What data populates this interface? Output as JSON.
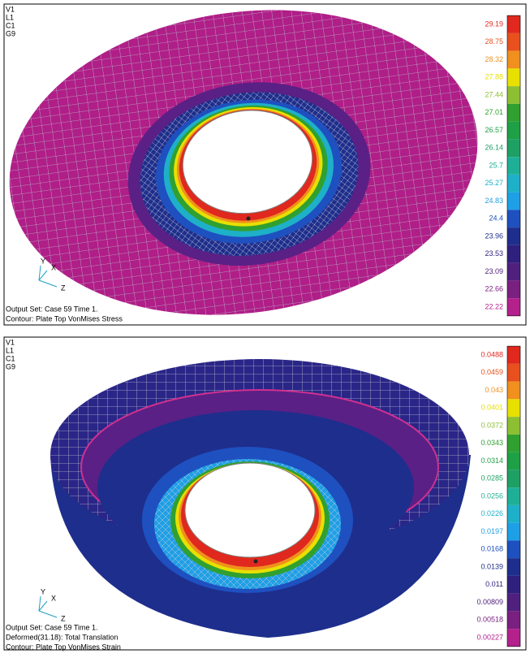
{
  "panels": [
    {
      "header": [
        "V1",
        "L1",
        "C1",
        "G9"
      ],
      "legend": [
        {
          "label": "29.19",
          "color": "#e0281e"
        },
        {
          "label": "28.75",
          "color": "#e8501e"
        },
        {
          "label": "28.32",
          "color": "#f0901e"
        },
        {
          "label": "27.88",
          "color": "#e8e000"
        },
        {
          "label": "27.44",
          "color": "#8cc032"
        },
        {
          "label": "27.01",
          "color": "#30a030"
        },
        {
          "label": "26.57",
          "color": "#1ea046"
        },
        {
          "label": "26.14",
          "color": "#1ea064"
        },
        {
          "label": "25.7",
          "color": "#1eb096"
        },
        {
          "label": "25.27",
          "color": "#1eb0c8"
        },
        {
          "label": "24.83",
          "color": "#1ea0e6"
        },
        {
          "label": "24.4",
          "color": "#1e50c0"
        },
        {
          "label": "23.96",
          "color": "#1e2e8c"
        },
        {
          "label": "23.53",
          "color": "#30207e"
        },
        {
          "label": "23.09",
          "color": "#50207e"
        },
        {
          "label": "22.66",
          "color": "#7a2080"
        },
        {
          "label": "22.22",
          "color": "#b4208c"
        }
      ],
      "axes": [
        "Y",
        "X",
        "Z"
      ],
      "footer": [
        "Output Set: Case 59 Time 1.",
        "Contour: Plate Top VonMises Stress"
      ]
    },
    {
      "header": [
        "V1",
        "L1",
        "C1",
        "G9"
      ],
      "legend": [
        {
          "label": "0.0488",
          "color": "#e0281e"
        },
        {
          "label": "0.0459",
          "color": "#e8501e"
        },
        {
          "label": "0.043",
          "color": "#f0901e"
        },
        {
          "label": "0.0401",
          "color": "#e8e000"
        },
        {
          "label": "0.0372",
          "color": "#8cc032"
        },
        {
          "label": "0.0343",
          "color": "#30a030"
        },
        {
          "label": "0.0314",
          "color": "#1ea046"
        },
        {
          "label": "0.0285",
          "color": "#1ea064"
        },
        {
          "label": "0.0256",
          "color": "#1eb096"
        },
        {
          "label": "0.0226",
          "color": "#1eb0c8"
        },
        {
          "label": "0.0197",
          "color": "#1ea0e6"
        },
        {
          "label": "0.0168",
          "color": "#1e50c0"
        },
        {
          "label": "0.0139",
          "color": "#1e2e8c"
        },
        {
          "label": "0.011",
          "color": "#30207e"
        },
        {
          "label": "0.00809",
          "color": "#50207e"
        },
        {
          "label": "0.00518",
          "color": "#7a2080"
        },
        {
          "label": "0.00227",
          "color": "#b4208c"
        }
      ],
      "axes": [
        "Y",
        "X",
        "Z"
      ],
      "footer": [
        "Output Set: Case 59 Time 1.",
        "Deformed(31.18): Total Translation",
        "Contour: Plate Top VonMises Strain"
      ]
    }
  ]
}
